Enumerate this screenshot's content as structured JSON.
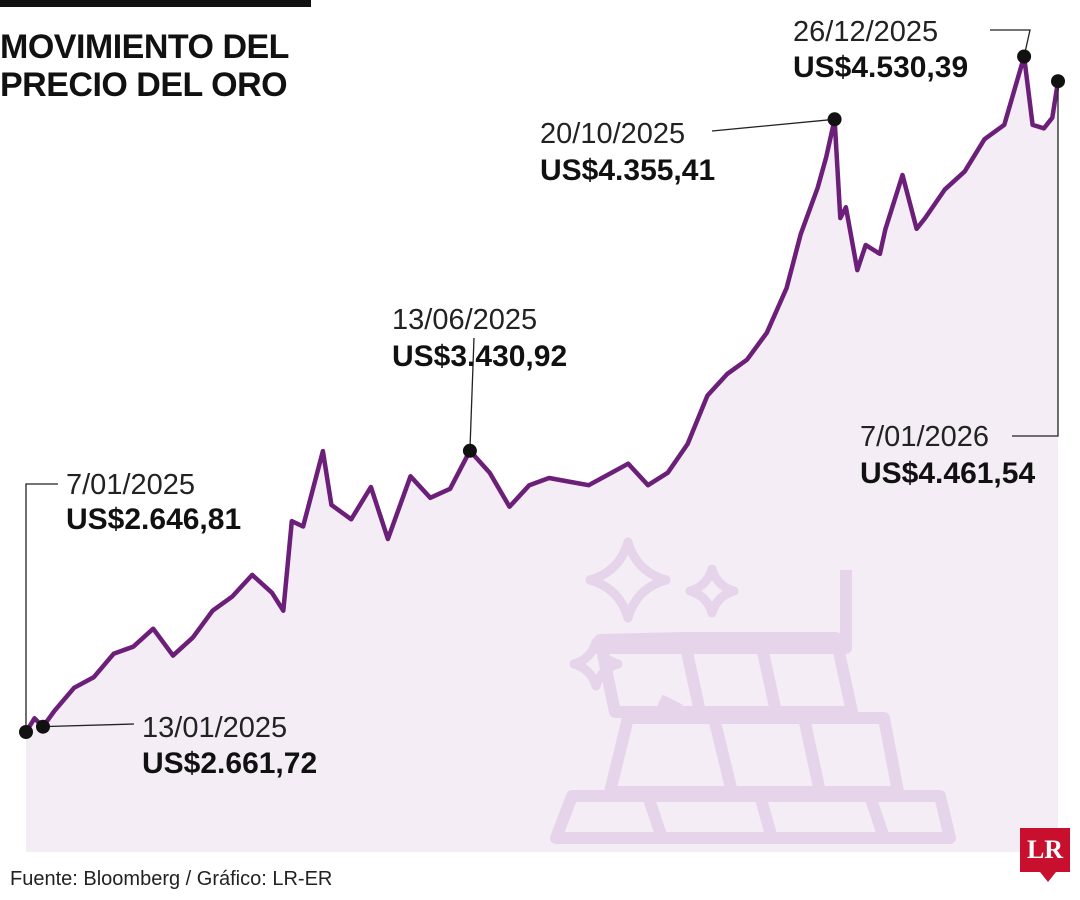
{
  "title": {
    "line1": "MOVIMIENTO DEL",
    "line2": "PRECIO DEL ORO"
  },
  "source": "Fuente: Bloomberg / Gráfico: LR-ER",
  "logo": "LR",
  "colors": {
    "line": "#6b1f78",
    "fill": "#ede1f0",
    "icon": "#dcc3e0",
    "marker": "#111111",
    "logo": "#c8102e"
  },
  "icons": [
    "sparkle-icon",
    "gold-bars-icon"
  ],
  "chart_data": {
    "type": "area",
    "title": "MOVIMIENTO DEL PRECIO DEL ORO",
    "xlabel": "",
    "ylabel": "",
    "xlim": [
      "2025-01-07",
      "2026-01-07"
    ],
    "ylim": [
      2600,
      4600
    ],
    "grid": false,
    "series": [
      {
        "x": [
          "2025-01-07",
          "2025-01-10",
          "2025-01-13",
          "2025-01-17",
          "2025-01-24",
          "2025-01-31",
          "2025-02-07",
          "2025-02-14",
          "2025-02-21",
          "2025-02-28",
          "2025-03-07",
          "2025-03-14",
          "2025-03-21",
          "2025-03-28",
          "2025-04-04",
          "2025-04-08",
          "2025-04-11",
          "2025-04-15",
          "2025-04-22",
          "2025-04-25",
          "2025-05-02",
          "2025-05-09",
          "2025-05-15",
          "2025-05-23",
          "2025-05-30",
          "2025-06-06",
          "2025-06-13",
          "2025-06-20",
          "2025-06-27",
          "2025-07-04",
          "2025-07-11",
          "2025-07-18",
          "2025-07-25",
          "2025-08-01",
          "2025-08-08",
          "2025-08-15",
          "2025-08-22",
          "2025-08-29",
          "2025-09-05",
          "2025-09-12",
          "2025-09-19",
          "2025-09-26",
          "2025-10-03",
          "2025-10-08",
          "2025-10-14",
          "2025-10-17",
          "2025-10-20",
          "2025-10-22",
          "2025-10-24",
          "2025-10-28",
          "2025-10-31",
          "2025-11-05",
          "2025-11-07",
          "2025-11-13",
          "2025-11-18",
          "2025-11-21",
          "2025-11-28",
          "2025-12-05",
          "2025-12-12",
          "2025-12-19",
          "2025-12-26",
          "2025-12-29",
          "2026-01-02",
          "2026-01-05",
          "2026-01-07"
        ],
        "y": [
          2646.81,
          2685,
          2661.72,
          2705,
          2770,
          2800,
          2865,
          2885,
          2935,
          2860,
          2910,
          2985,
          3025,
          3085,
          3035,
          2985,
          3235,
          3220,
          3430,
          3280,
          3240,
          3330,
          3185,
          3360,
          3300,
          3325,
          3430.92,
          3370,
          3275,
          3335,
          3355,
          3345,
          3335,
          3365,
          3395,
          3335,
          3370,
          3450,
          3585,
          3645,
          3685,
          3760,
          3885,
          4035,
          4165,
          4250,
          4355.41,
          4080,
          4110,
          3935,
          4005,
          3980,
          4050,
          4200,
          4050,
          4080,
          4160,
          4210,
          4300,
          4340,
          4530.39,
          4340,
          4330,
          4360,
          4461.54
        ]
      }
    ],
    "annotations": [
      {
        "date": "7/01/2025",
        "price": "US$2.646,81"
      },
      {
        "date": "13/01/2025",
        "price": "US$2.661,72"
      },
      {
        "date": "13/06/2025",
        "price": "US$3.430,92"
      },
      {
        "date": "20/10/2025",
        "price": "US$4.355,41"
      },
      {
        "date": "26/12/2025",
        "price": "US$4.530,39"
      },
      {
        "date": "7/01/2026",
        "price": "US$4.461,54"
      }
    ]
  }
}
